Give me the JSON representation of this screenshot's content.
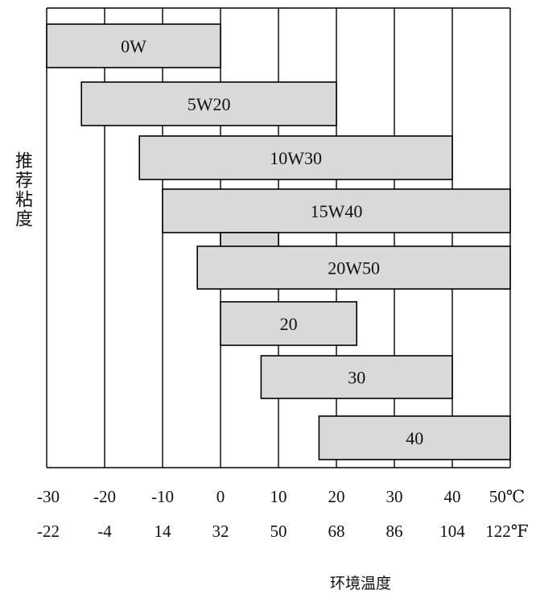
{
  "chart_data": {
    "type": "range-bar",
    "ylabel": "推荐粘度",
    "xlabel": "环境温度",
    "x_range_celsius": [
      -30,
      50
    ],
    "grid": "vertical lines at every 10 °C",
    "ticks_celsius": [
      "-30",
      "-20",
      "-10",
      "0",
      "10",
      "20",
      "30",
      "40",
      "50℃"
    ],
    "ticks_fahrenheit": [
      "-22",
      "-4",
      "14",
      "32",
      "50",
      "68",
      "86",
      "104",
      "122℉"
    ],
    "tick_values": [
      -30,
      -20,
      -10,
      0,
      10,
      20,
      30,
      40,
      50
    ],
    "bars": [
      {
        "label": "0W",
        "min": -30,
        "max": 0
      },
      {
        "label": "5W20",
        "min": -24,
        "max": 20
      },
      {
        "label": "10W30",
        "min": -14,
        "max": 40
      },
      {
        "label": "15W40",
        "min": -10,
        "max": 50
      },
      {
        "label": "",
        "min": 0,
        "max": 10
      },
      {
        "label": "20W50",
        "min": -4,
        "max": 50
      },
      {
        "label": "20",
        "min": 0,
        "max": 23.5
      },
      {
        "label": "30",
        "min": 7,
        "max": 40
      },
      {
        "label": "40",
        "min": 17,
        "max": 50
      }
    ],
    "colors": {
      "bar_fill": "#d9d9d9",
      "bar_stroke": "#000000",
      "grid": "#000000",
      "text": "#111111"
    }
  }
}
